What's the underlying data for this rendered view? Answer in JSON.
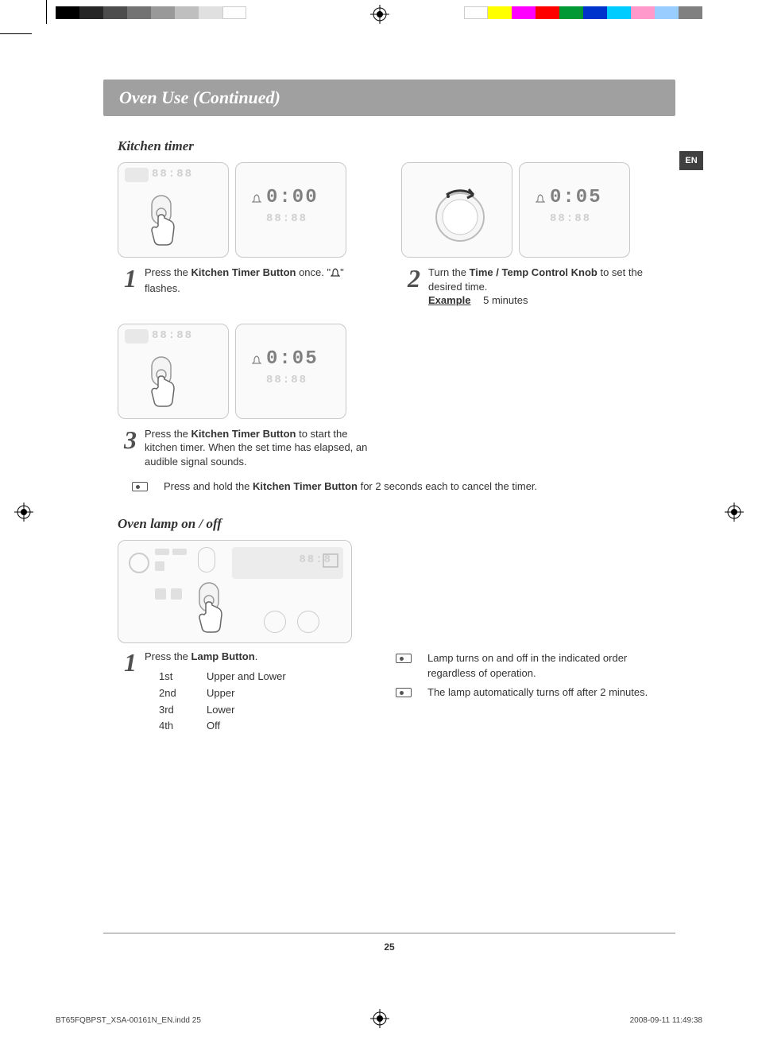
{
  "colorbar": {
    "left": [
      "#000000",
      "#262626",
      "#4d4d4d",
      "#737373",
      "#999999",
      "#bfbfbf",
      "#e0e0e0",
      "#ffffff"
    ],
    "right": [
      "#ffffff",
      "#ffff00",
      "#ff00ff",
      "#ff0000",
      "#009933",
      "#0033cc",
      "#00ccff",
      "#ff99cc",
      "#99ccff",
      "#808080"
    ]
  },
  "title": "Oven Use (Continued)",
  "lang_tab": "EN",
  "section1": {
    "title": "Kitchen timer"
  },
  "steps": {
    "s1": {
      "num": "1",
      "display": "0:00",
      "text_pre": "Press the ",
      "bold1": "Kitchen Timer Button",
      "text_mid": " once. \"",
      "text_post": "\" flashes."
    },
    "s2": {
      "num": "2",
      "display": "0:05",
      "text_pre": "Turn the ",
      "bold1": "Time / Temp Control Knob",
      "text_post": " to set the desired time.",
      "example_label": "Example",
      "example_val": "5 minutes"
    },
    "s3": {
      "num": "3",
      "display": "0:05",
      "text_pre": "Press the ",
      "bold1": "Kitchen Timer Button",
      "text_post": " to start the kitchen timer. When the set time has elapsed, an audible signal sounds."
    }
  },
  "note1": {
    "pre": "Press and hold the ",
    "bold": "Kitchen Timer Button",
    "post": " for 2 seconds each to cancel the timer."
  },
  "section2": {
    "title": "Oven lamp on / off"
  },
  "lamp_step": {
    "num": "1",
    "text_pre": "Press the ",
    "bold1": "Lamp Button",
    "text_post": ".",
    "rows": [
      {
        "k": "1st",
        "v": "Upper and Lower"
      },
      {
        "k": "2nd",
        "v": "Upper"
      },
      {
        "k": "3rd",
        "v": "Lower"
      },
      {
        "k": "4th",
        "v": "Off"
      }
    ]
  },
  "lamp_notes": {
    "n1": "Lamp turns on and off in the indicated order regardless of operation.",
    "n2": "The lamp automatically turns off after 2 minutes."
  },
  "page_num": "25",
  "imprint": {
    "file": "BT65FQBPST_XSA-00161N_EN.indd   25",
    "date": "2008-09-11     11:49:38"
  }
}
